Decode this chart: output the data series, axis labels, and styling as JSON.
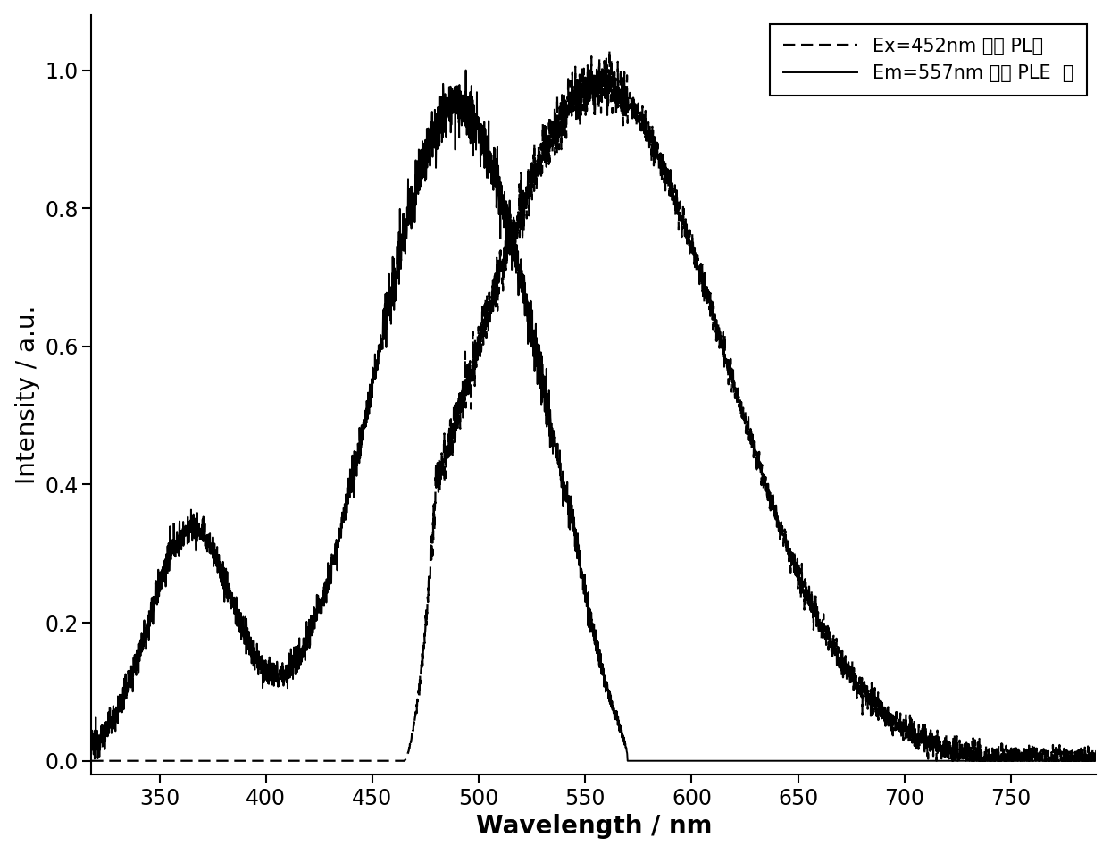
{
  "xlabel": "Wavelength / nm",
  "ylabel": "Intensity / a.u.",
  "xlim": [
    318,
    790
  ],
  "ylim": [
    -0.02,
    1.08
  ],
  "xticks": [
    350,
    400,
    450,
    500,
    550,
    600,
    650,
    700,
    750
  ],
  "yticks": [
    0.0,
    0.2,
    0.4,
    0.6,
    0.8,
    1.0
  ],
  "legend_PL": "Ex=452nm 时的 PL谱",
  "legend_PLE": "Em=557nm 时的 PLE  谱",
  "background_color": "#ffffff",
  "line_color": "#000000",
  "axis_fontsize": 20,
  "tick_fontsize": 17,
  "legend_fontsize": 15
}
